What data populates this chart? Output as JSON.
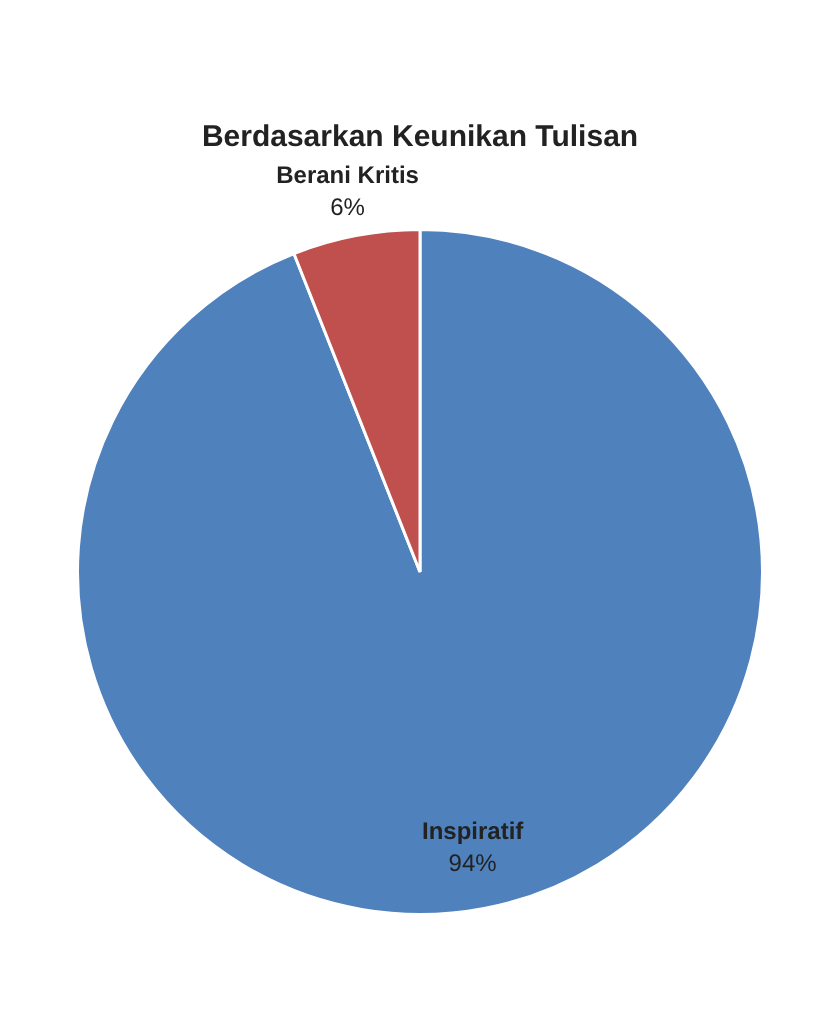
{
  "chart_data": {
    "type": "pie",
    "title": "Berdasarkan Keunikan Tulisan",
    "categories": [
      "Inspiratif",
      "Berani Kritis"
    ],
    "values": [
      94,
      6
    ],
    "value_labels": [
      "94%",
      "6%"
    ],
    "colors": [
      "#4f81bd",
      "#c0504d"
    ],
    "legend": false
  }
}
